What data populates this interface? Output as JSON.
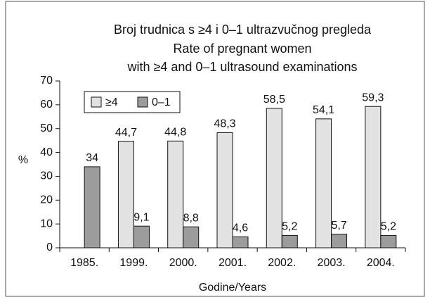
{
  "chart_data": {
    "type": "bar",
    "title": [
      "Broj trudnica s ≥4 i 0–1 ultrazvučnog pregleda",
      "Rate of pregnant women",
      "with ≥4 and 0–1 ultrasound examinations"
    ],
    "ylabel": "%",
    "xlabel": "Godine/Years",
    "categories": [
      "1985.",
      "1999.",
      "2000.",
      "2001.",
      "2002.",
      "2003.",
      "2004."
    ],
    "series": [
      {
        "name": "≥4",
        "color": "#e2e2e2",
        "values": [
          null,
          44.7,
          44.8,
          48.3,
          58.5,
          54.1,
          59.3
        ],
        "value_labels": [
          null,
          "44,7",
          "44,8",
          "48,3",
          "58,5",
          "54,1",
          "59,3"
        ]
      },
      {
        "name": "0–1",
        "color": "#9c9c9c",
        "values": [
          34,
          9.1,
          8.8,
          4.6,
          5.2,
          5.7,
          5.2
        ],
        "value_labels": [
          "34",
          "9,1",
          "8,8",
          "4,6",
          "5,2",
          "5,7",
          "5,2"
        ]
      }
    ],
    "ylim": [
      0,
      70
    ],
    "yticks": [
      0,
      10,
      20,
      30,
      40,
      50,
      60,
      70
    ],
    "grid": false,
    "legend": "upper left"
  }
}
